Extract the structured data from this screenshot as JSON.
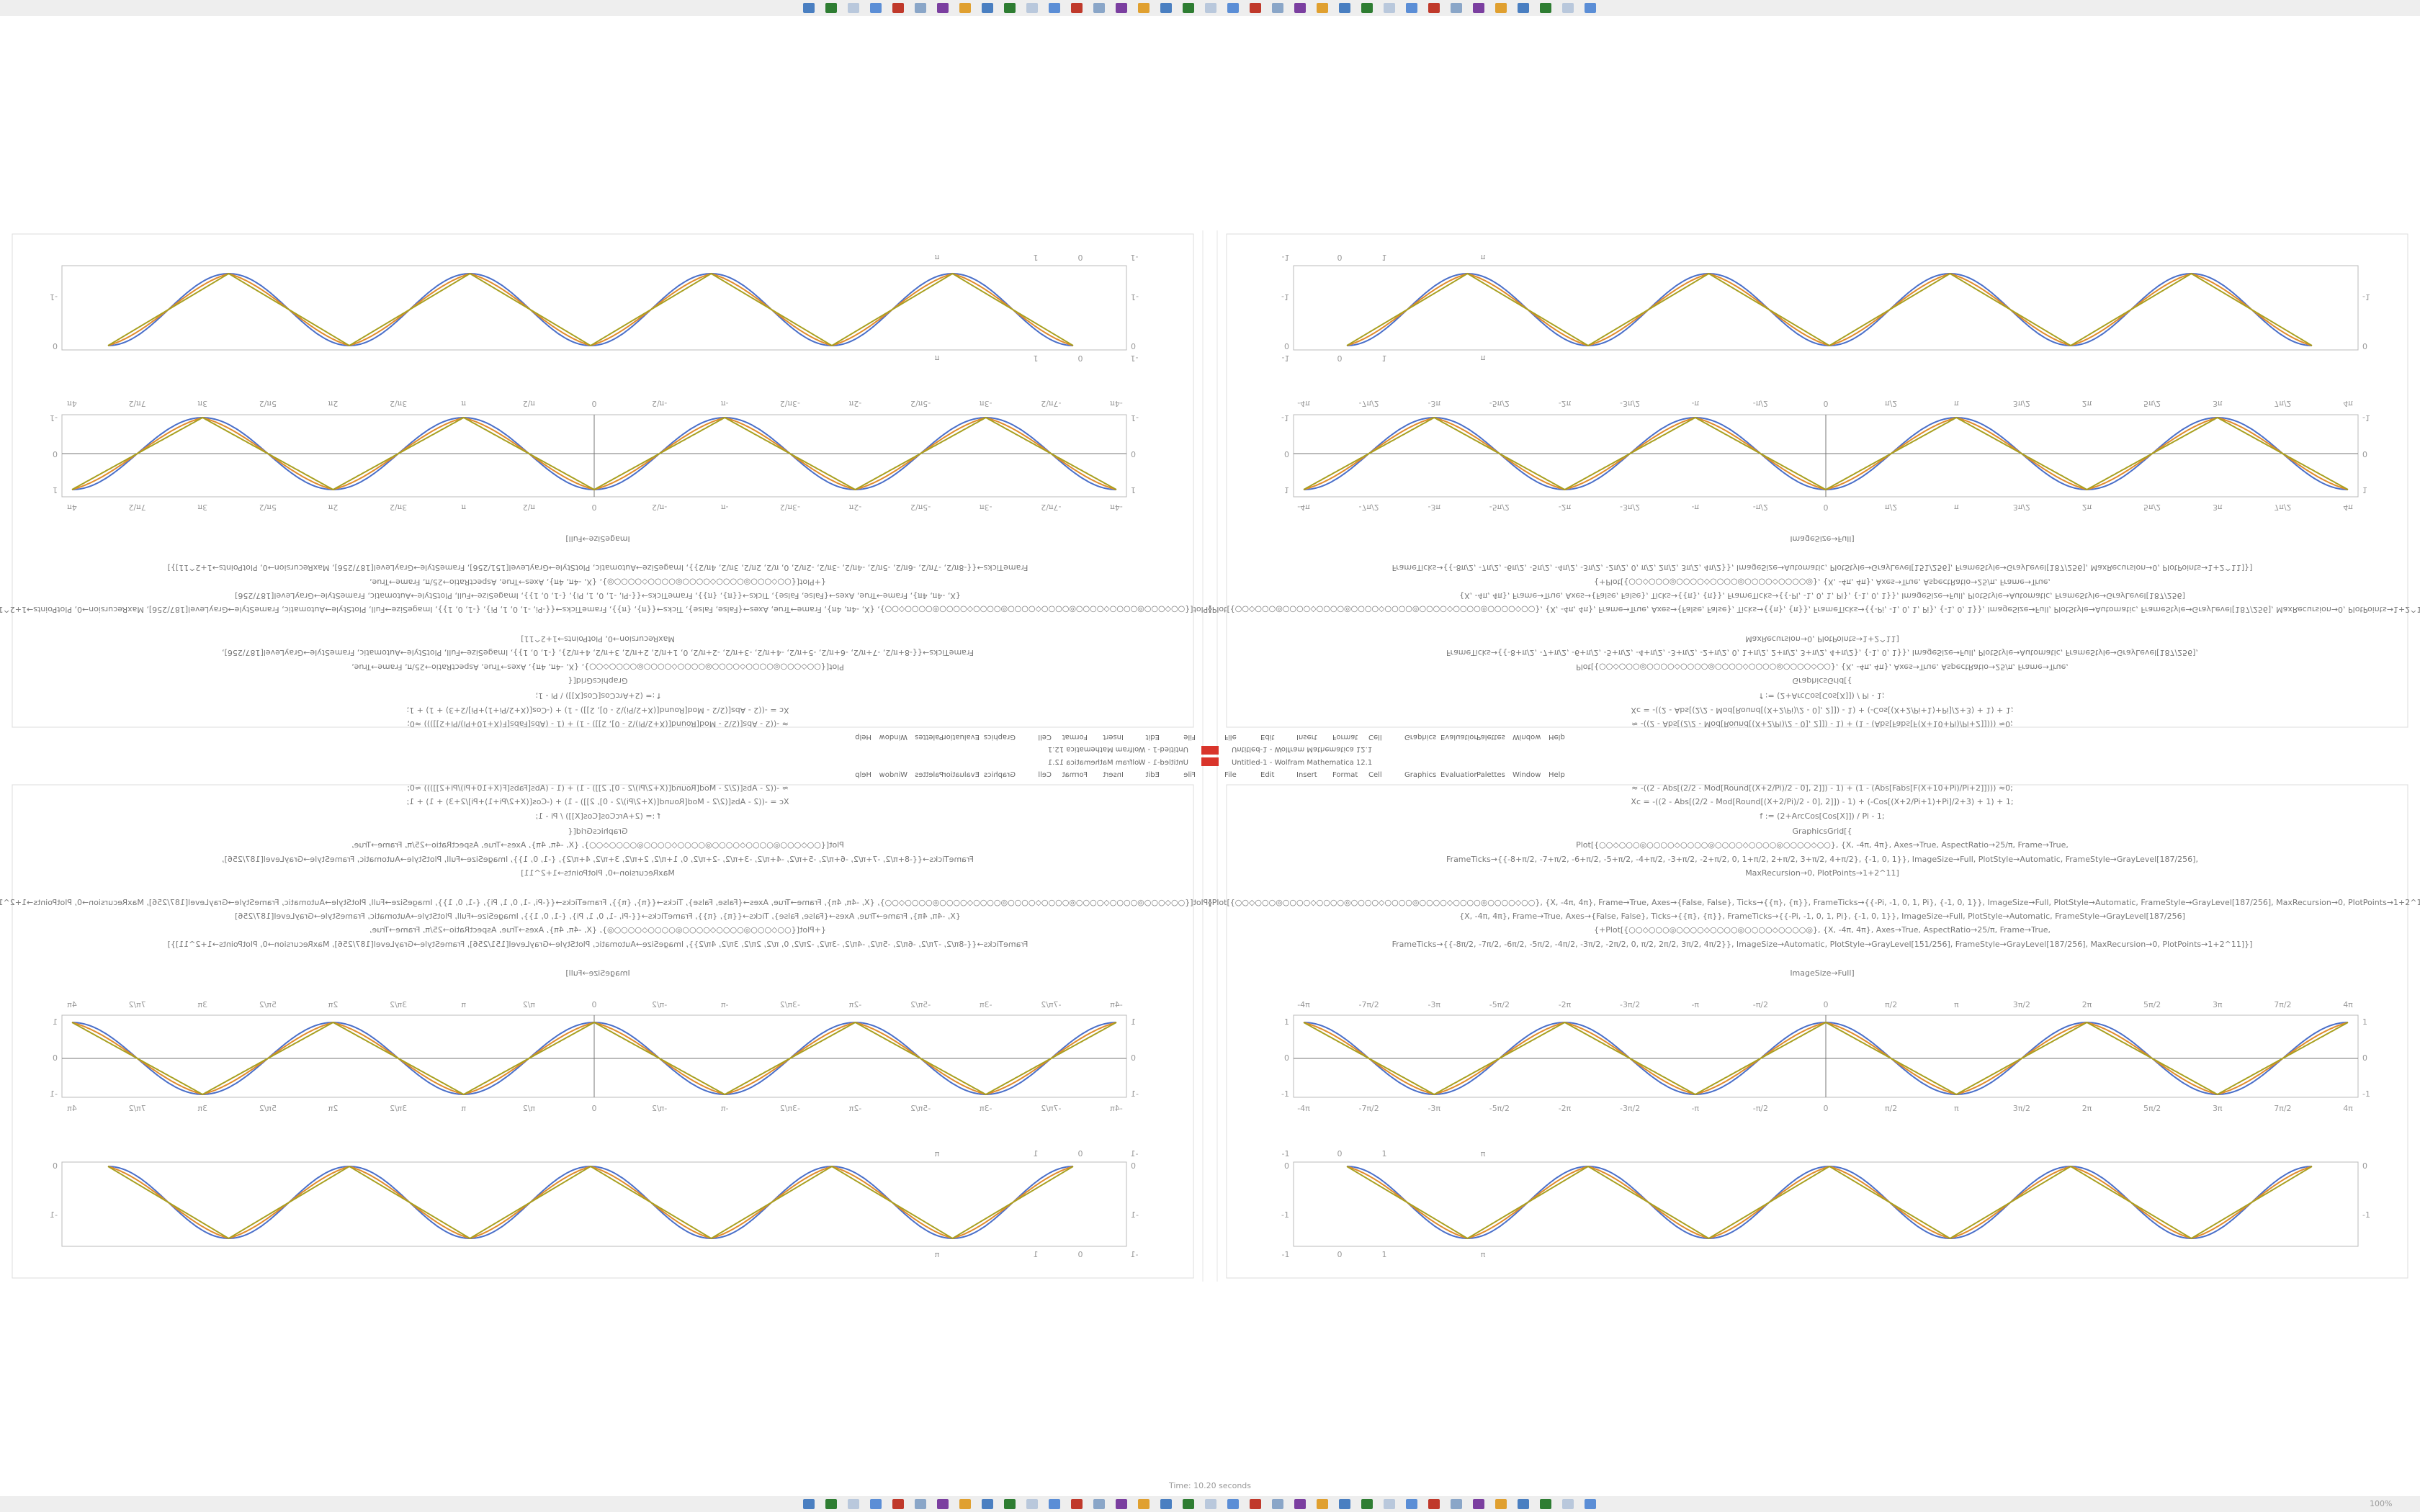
{
  "window": {
    "title": "Untitled-1 - Wolfram Mathematica 12.1",
    "status": "Time: 10.20 seconds",
    "zoom": "100%"
  },
  "menu": [
    "File",
    "Edit",
    "Insert",
    "Format",
    "Cell",
    "Graphics",
    "Evaluation",
    "Palettes",
    "Window",
    "Help"
  ],
  "code": [
    "≈ -((2 - Abs[(2/2 - Mod[Round[(X+2/Pi)/2 - 0], 2]]) - 1) + (1 - (Abs[Fabs[F(X+10+Pi)/Pi+2]]))) ≈0;",
    "Xc = -((2 - Abs[(2/2 - Mod[Round[(X+2/Pi)/2 - 0], 2]]) - 1) + (-Cos[(X+2/Pi+1)+Pi]/2+3) + 1) + 1;",
    "f := (2+ArcCos[Cos[X]]) / Pi - 1;",
    "GraphicsGrid[{",
    "Plot[{○○◇○○○◎○○○○◇○○○○◎○○○○◇○○○○◎○○○○◇○○}, {X, -4π, 4π}, Axes→True, AspectRatio→25/π, Frame→True,",
    "FrameTicks→{{-8+π/2, -7+π/2, -6+π/2, -5+π/2, -4+π/2, -3+π/2, -2+π/2, 0, 1+π/2, 2+π/2, 3+π/2, 4+π/2}, {-1, 0, 1}}, ImageSize→Full, PlotStyle→Automatic, FrameStyle→GrayLevel[187/256],",
    "MaxRecursion→0, PlotPoints→1+2^11]",
    "{Plot[{○○◇○○○◎○○○○◇○○○○◎○○○○◇○○○○◎○○○○◇○○○○◎○○○○◇○○}, {X, -4π, 4π}, Frame→True, Axes→{False, False}, Ticks→{{π}, {π}}, FrameTicks→{{-Pi, -1, 0, 1, Pi}, {-1, 0, 1}}, ImageSize→Full, PlotStyle→Automatic, FrameStyle→GrayLevel[187/256], MaxRecursion→0, PlotPoints→1+2^11]},",
    "{X, -4π, 4π}, Frame→True, Axes→{False, False}, Ticks→{{π}, {π}}, FrameTicks→{{-Pi, -1, 0, 1, Pi}, {-1, 0, 1}}, ImageSize→Full, PlotStyle→Automatic, FrameStyle→GrayLevel[187/256]",
    "{+Plot[{○○◇○○○◎○○○○◇○○○○◎○○○○◇○○○○◎}, {X, -4π, 4π}, Axes→True, AspectRatio→25/π, Frame→True,",
    "FrameTicks→{{-8π/2, -7π/2, -6π/2, -5π/2, -4π/2, -3π/2, -2π/2, 0, π/2, 2π/2, 3π/2, 4π/2}}, ImageSize→Automatic, PlotStyle→GrayLevel[151/256], FrameStyle→GrayLevel[187/256], MaxRecursion→0, PlotPoints→1+2^11]}]",
    "ImageSize→Full]"
  ],
  "plot1": {
    "x_ticks": [
      "-4π",
      "-7π/2",
      "-3π",
      "-5π/2",
      "-2π",
      "-3π/2",
      "-π",
      "-π/2",
      "0",
      "π/2",
      "π",
      "3π/2",
      "2π",
      "5π/2",
      "3π",
      "7π/2",
      "4π"
    ],
    "y_ticks": [
      "-1",
      "0",
      "1"
    ]
  },
  "plot2": {
    "x_ticks": [
      "-1",
      "0",
      "1",
      "π"
    ],
    "y_ticks": [
      "-1",
      "0"
    ]
  }
}
